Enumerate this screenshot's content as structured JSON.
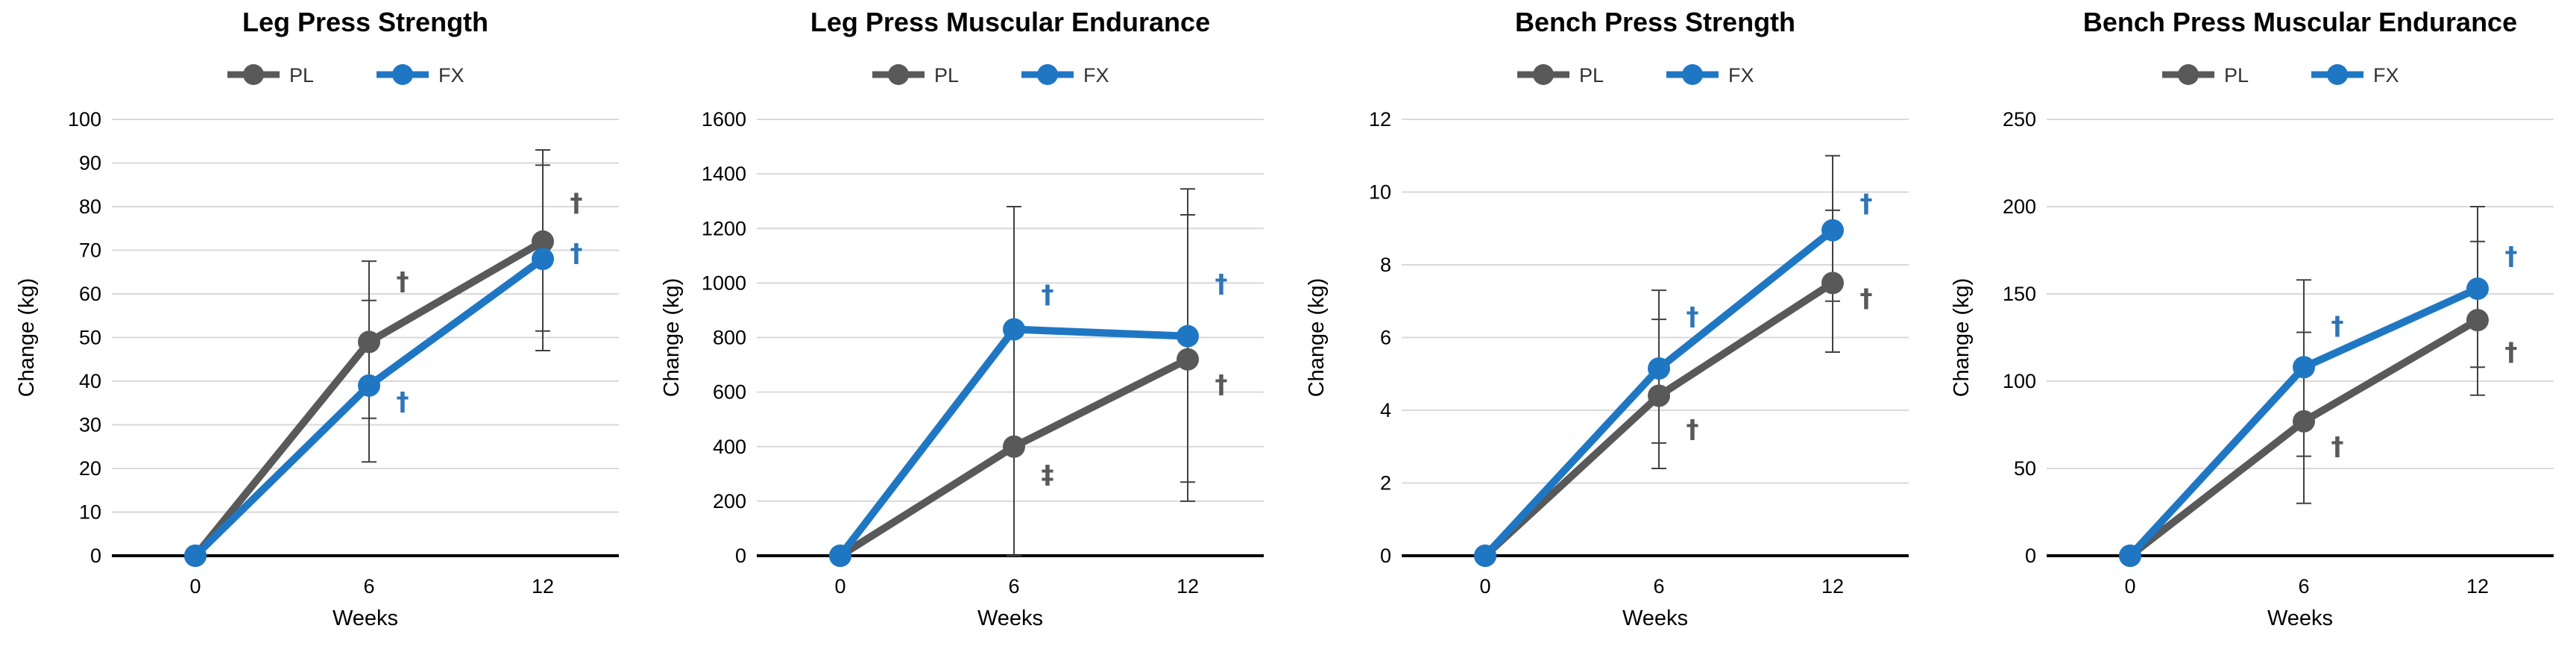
{
  "colors": {
    "PL": "#595959",
    "FX": "#1f77c4",
    "fx_marker": "#2e75b6"
  },
  "chart_data": [
    {
      "type": "line",
      "title": "Leg Press Strength",
      "xlabel": "Weeks",
      "ylabel": "Change (kg)",
      "categories": [
        "0",
        "6",
        "12"
      ],
      "ylim": [
        0,
        100
      ],
      "yticks": [
        0,
        10,
        20,
        30,
        40,
        50,
        60,
        70,
        80,
        90,
        100
      ],
      "yticks_label": [
        "0",
        "10",
        "20",
        "30",
        "40",
        "50",
        "60",
        "70",
        "80",
        "90",
        "100"
      ],
      "legend": [
        "PL",
        "FX"
      ],
      "legend_position": "top-center",
      "series": [
        {
          "name": "PL",
          "values": [
            0,
            49,
            72
          ],
          "err_low": [
            0,
            21.5,
            51.5
          ],
          "err_high": [
            0,
            67.5,
            93
          ]
        },
        {
          "name": "FX",
          "values": [
            0,
            39,
            68
          ],
          "err_low": [
            0,
            31.5,
            47
          ],
          "err_high": [
            0,
            58.5,
            89.5
          ]
        }
      ],
      "annotations": [
        {
          "category": "6",
          "series": "PL",
          "value": 63,
          "text": "†"
        },
        {
          "category": "6",
          "series": "FX",
          "value": 35.5,
          "text": "†"
        },
        {
          "category": "12",
          "series": "PL",
          "value": 81,
          "text": "†"
        },
        {
          "category": "12",
          "series": "FX",
          "value": 69.5,
          "text": "†"
        }
      ]
    },
    {
      "type": "line",
      "title": "Leg Press Muscular Endurance",
      "xlabel": "Weeks",
      "ylabel": "Change (kg)",
      "categories": [
        "0",
        "6",
        "12"
      ],
      "ylim": [
        0,
        1600
      ],
      "yticks": [
        0,
        200,
        400,
        600,
        800,
        1000,
        1200,
        1400,
        1600
      ],
      "yticks_label": [
        "0",
        "200",
        "400",
        "600",
        "800",
        "1000",
        "1200",
        "1400",
        "1600"
      ],
      "legend": [
        "PL",
        "FX"
      ],
      "legend_position": "top-center",
      "series": [
        {
          "name": "PL",
          "values": [
            0,
            400,
            720
          ],
          "err_low": [
            0,
            0,
            200
          ],
          "err_high": [
            0,
            1280,
            1250
          ]
        },
        {
          "name": "FX",
          "values": [
            0,
            830,
            805
          ],
          "err_low": [
            0,
            0,
            270
          ],
          "err_high": [
            0,
            1280,
            1345
          ]
        }
      ],
      "annotations": [
        {
          "category": "6",
          "series": "PL",
          "value": 300,
          "text": "‡"
        },
        {
          "category": "6",
          "series": "FX",
          "value": 960,
          "text": "†"
        },
        {
          "category": "12",
          "series": "PL",
          "value": 630,
          "text": "†"
        },
        {
          "category": "12",
          "series": "FX",
          "value": 1000,
          "text": "†"
        }
      ]
    },
    {
      "type": "line",
      "title": "Bench Press Strength",
      "xlabel": "Weeks",
      "ylabel": "Change (kg)",
      "categories": [
        "0",
        "6",
        "12"
      ],
      "ylim": [
        0,
        12
      ],
      "yticks": [
        0,
        2,
        4,
        6,
        8,
        10,
        12
      ],
      "yticks_label": [
        "0",
        "2",
        "4",
        "6",
        "8",
        "10",
        "12"
      ],
      "legend": [
        "PL",
        "FX"
      ],
      "legend_position": "top-center",
      "series": [
        {
          "name": "PL",
          "values": [
            0,
            4.4,
            7.5
          ],
          "err_low": [
            0,
            2.4,
            5.6
          ],
          "err_high": [
            0,
            6.5,
            9.5
          ]
        },
        {
          "name": "FX",
          "values": [
            0,
            5.15,
            8.95
          ],
          "err_low": [
            0,
            3.1,
            7.0
          ],
          "err_high": [
            0,
            7.3,
            11.0
          ]
        }
      ],
      "annotations": [
        {
          "category": "6",
          "series": "PL",
          "value": 3.5,
          "text": "†"
        },
        {
          "category": "6",
          "series": "FX",
          "value": 6.6,
          "text": "†"
        },
        {
          "category": "12",
          "series": "PL",
          "value": 7.1,
          "text": "†"
        },
        {
          "category": "12",
          "series": "FX",
          "value": 9.7,
          "text": "†"
        }
      ]
    },
    {
      "type": "line",
      "title": "Bench Press Muscular Endurance",
      "xlabel": "Weeks",
      "ylabel": "Change (kg)",
      "categories": [
        "0",
        "6",
        "12"
      ],
      "ylim": [
        0,
        250
      ],
      "yticks": [
        0,
        50,
        100,
        150,
        200,
        250
      ],
      "yticks_label": [
        "0",
        "50",
        "100",
        "150",
        "200",
        "250"
      ],
      "legend": [
        "PL",
        "FX"
      ],
      "legend_position": "top-center",
      "series": [
        {
          "name": "PL",
          "values": [
            0,
            77,
            135
          ],
          "err_low": [
            0,
            30,
            92
          ],
          "err_high": [
            0,
            128,
            180
          ]
        },
        {
          "name": "FX",
          "values": [
            0,
            108,
            153
          ],
          "err_low": [
            0,
            57,
            108
          ],
          "err_high": [
            0,
            158,
            200
          ]
        }
      ],
      "annotations": [
        {
          "category": "6",
          "series": "PL",
          "value": 63,
          "text": "†"
        },
        {
          "category": "6",
          "series": "FX",
          "value": 132,
          "text": "†"
        },
        {
          "category": "12",
          "series": "PL",
          "value": 117,
          "text": "†"
        },
        {
          "category": "12",
          "series": "FX",
          "value": 172,
          "text": "†"
        }
      ]
    }
  ]
}
